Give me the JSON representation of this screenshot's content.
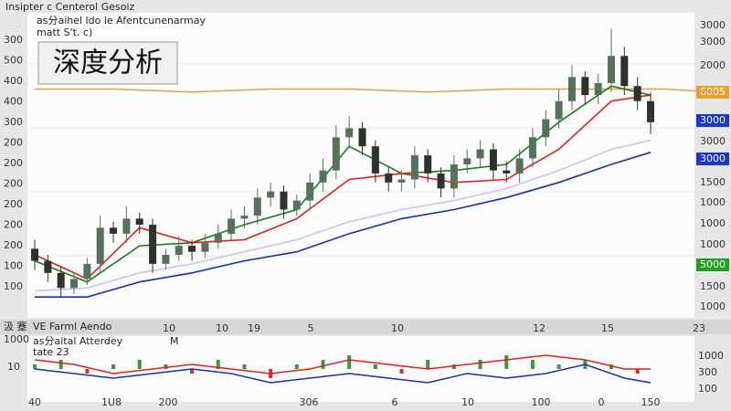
{
  "header": {
    "title": "Insipter c Centerol Gesoiz",
    "badge": "深度分析",
    "legend": "as分aihel ldo le Afentcunenarmay",
    "legend_sub": "matt S't. c)"
  },
  "left_axis_labels": [
    "300",
    "500",
    "400",
    "400",
    "300",
    "200",
    "200",
    "200",
    "200",
    "200",
    "200",
    "100",
    "100"
  ],
  "right_axis_labels": [
    "3000",
    "3000",
    "2000",
    "6005",
    "3000",
    "3000",
    "3000",
    "1500",
    "1000",
    "1000",
    "1000",
    "5000",
    "1500",
    "1000"
  ],
  "x_labels": [
    "10",
    "10",
    "19",
    "5",
    "10",
    "12",
    "15",
    "23"
  ],
  "strip": {
    "left": "汲 蹇",
    "title": "VE Farml Aendo"
  },
  "lower": {
    "legend": "as分aital Atterdey",
    "legend_mark": "M",
    "legend_sub": "tate 23",
    "left_labels": [
      "1000",
      "10"
    ],
    "right_labels": [
      "1000",
      "300",
      "100"
    ],
    "x_labels": [
      "40",
      "1U8",
      "200",
      "306",
      "6",
      "10",
      "100",
      "0",
      "150"
    ]
  },
  "chart_data": [
    {
      "type": "candlestick",
      "ylim": [
        0,
        100
      ],
      "up_color": "#55735a",
      "down_color": "#2e332e",
      "opens": [
        22,
        18,
        14,
        9,
        12,
        17,
        29,
        27,
        32,
        30,
        17,
        20,
        23,
        21,
        24,
        27,
        32,
        33,
        39,
        41,
        35,
        38,
        44,
        48,
        59,
        62,
        56,
        47,
        44,
        45,
        53,
        47,
        42,
        50,
        52,
        55,
        48,
        47,
        52,
        59,
        65,
        71,
        79,
        73,
        77,
        86,
        76,
        71
      ],
      "highs": [
        25,
        20,
        16,
        14,
        19,
        33,
        31,
        36,
        34,
        32,
        22,
        26,
        25,
        27,
        30,
        35,
        36,
        42,
        44,
        43,
        40,
        47,
        52,
        63,
        66,
        64,
        58,
        49,
        48,
        56,
        55,
        49,
        53,
        55,
        58,
        57,
        51,
        55,
        62,
        68,
        75,
        83,
        81,
        80,
        95,
        89,
        79,
        74
      ],
      "lows": [
        15,
        11,
        6,
        7,
        10,
        14,
        24,
        24,
        27,
        14,
        15,
        18,
        18,
        19,
        22,
        25,
        29,
        30,
        36,
        32,
        33,
        35,
        41,
        45,
        56,
        53,
        44,
        41,
        41,
        42,
        44,
        39,
        39,
        47,
        49,
        45,
        44,
        44,
        49,
        56,
        62,
        68,
        70,
        70,
        74,
        73,
        68,
        60
      ],
      "closes": [
        18,
        14,
        9,
        12,
        17,
        29,
        27,
        32,
        30,
        17,
        20,
        23,
        21,
        24,
        27,
        32,
        33,
        39,
        41,
        35,
        38,
        44,
        48,
        59,
        62,
        56,
        47,
        44,
        45,
        53,
        47,
        42,
        50,
        52,
        55,
        48,
        47,
        52,
        59,
        65,
        71,
        79,
        73,
        77,
        86,
        76,
        71,
        64
      ],
      "x": [
        0,
        4,
        8,
        12,
        16,
        20,
        24,
        28,
        32,
        36,
        40,
        44,
        47
      ],
      "series": [
        {
          "color": "#1a7a1a",
          "values": [
            18,
            11,
            23,
            24,
            30,
            35,
            56,
            47,
            48,
            50,
            64,
            76,
            73
          ]
        },
        {
          "color": "#e02020",
          "values": [
            20,
            12,
            29,
            24,
            25,
            32,
            45,
            47,
            44,
            45,
            55,
            71,
            73
          ]
        },
        {
          "color": "#c9c4ee",
          "values": [
            8,
            9,
            14,
            17,
            21,
            25,
            31,
            35,
            38,
            42,
            48,
            55,
            58
          ]
        },
        {
          "color": "#1a2fb0",
          "values": [
            6,
            6,
            11,
            14,
            18,
            21,
            27,
            32,
            35,
            39,
            44,
            50,
            54
          ]
        }
      ],
      "level": {
        "color": "#d9a050",
        "x": [
          0,
          6,
          12,
          18,
          24,
          30,
          36,
          42,
          48,
          52
        ],
        "values": [
          75,
          75,
          74,
          75,
          75,
          74,
          75,
          75,
          75,
          74
        ]
      }
    },
    {
      "type": "line",
      "ylim": [
        -6,
        6
      ],
      "x": [
        0,
        3,
        6,
        9,
        12,
        15,
        18,
        21,
        24,
        27,
        30,
        33,
        36,
        39,
        42,
        45,
        47
      ],
      "series": [
        {
          "color": "#e02020",
          "values": [
            2,
            1,
            -1,
            0,
            1,
            0,
            -1,
            0,
            2,
            1,
            0,
            1,
            2,
            3,
            2,
            0,
            0
          ]
        },
        {
          "color": "#1a2fb0",
          "values": [
            0,
            -1,
            -2,
            -1,
            0,
            -1,
            -3,
            -2,
            -1,
            -2,
            -3,
            -1,
            -2,
            -1,
            1,
            -2,
            -3
          ]
        }
      ],
      "bars_x": [
        0,
        2,
        4,
        6,
        8,
        10,
        12,
        14,
        16,
        18,
        20,
        22,
        24,
        26,
        28,
        30,
        32,
        34,
        36,
        38,
        40,
        42,
        44,
        46
      ],
      "bars": [
        1,
        2,
        -1,
        1,
        2,
        1,
        -1,
        2,
        1,
        -2,
        1,
        2,
        3,
        1,
        -1,
        2,
        1,
        2,
        3,
        2,
        1,
        2,
        1,
        -1
      ],
      "up_color": "#3a9a3a",
      "down_color": "#d03030"
    }
  ]
}
